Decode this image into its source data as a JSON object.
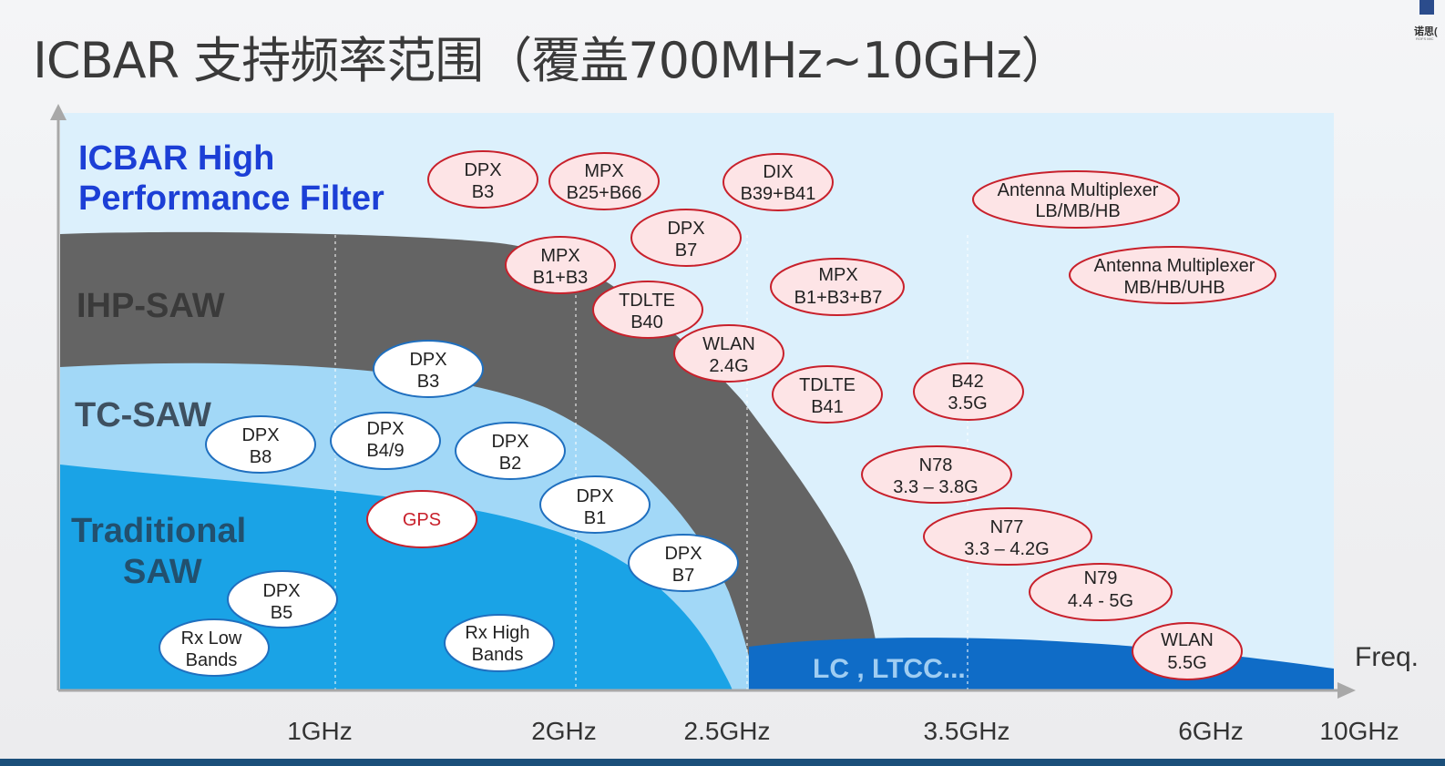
{
  "title": "ICBAR 支持频率范围（覆盖700MHz~10GHz）",
  "logo": {
    "text": "诺思(",
    "sub": "ROFS MIC"
  },
  "colors": {
    "plot_bg": "#dcf0fc",
    "ihp_saw": "#646464",
    "tc_saw": "#a2d8f7",
    "traditional_saw": "#1aa3e6",
    "lc_ltcc": "#0f6cc7",
    "ellipse_red_border": "#c8202b",
    "ellipse_red_fill": "#fde4e6",
    "ellipse_blue_border": "#1f6fbf"
  },
  "regions": {
    "icbar": "ICBAR High",
    "icbar2": "Performance Filter",
    "ihp": "IHP-SAW",
    "tc": "TC-SAW",
    "traditional": "Traditional",
    "traditional2": "SAW",
    "lc": "LC , LTCC..."
  },
  "axis": {
    "x_label": "Freq.",
    "ticks": [
      "1GHz",
      "2GHz",
      "2.5GHz",
      "3.5GHz",
      "6GHz",
      "10GHz"
    ]
  },
  "bubbles": [
    {
      "l1": "DPX",
      "l2": "B3",
      "style": "red"
    },
    {
      "l1": "MPX",
      "l2": "B25+B66",
      "style": "red"
    },
    {
      "l1": "DIX",
      "l2": "B39+B41",
      "style": "red"
    },
    {
      "l1": "Antenna Multiplexer",
      "l2": "LB/MB/HB",
      "style": "red"
    },
    {
      "l1": "DPX",
      "l2": "B7",
      "style": "red"
    },
    {
      "l1": "MPX",
      "l2": "B1+B3",
      "style": "red"
    },
    {
      "l1": "Antenna Multiplexer",
      "l2": "MB/HB/UHB",
      "style": "red"
    },
    {
      "l1": "MPX",
      "l2": "B1+B3+B7",
      "style": "red"
    },
    {
      "l1": "TDLTE",
      "l2": "B40",
      "style": "red"
    },
    {
      "l1": "WLAN",
      "l2": "2.4G",
      "style": "red"
    },
    {
      "l1": "TDLTE",
      "l2": "B41",
      "style": "red"
    },
    {
      "l1": "B42",
      "l2": "3.5G",
      "style": "red"
    },
    {
      "l1": "N78",
      "l2": "3.3 – 3.8G",
      "style": "red"
    },
    {
      "l1": "N77",
      "l2": "3.3 – 4.2G",
      "style": "red"
    },
    {
      "l1": "N79",
      "l2": "4.4 - 5G",
      "style": "red"
    },
    {
      "l1": "WLAN",
      "l2": "5.5G",
      "style": "red"
    },
    {
      "l1": "DPX",
      "l2": "B3",
      "style": "blue"
    },
    {
      "l1": "DPX",
      "l2": "B8",
      "style": "blue"
    },
    {
      "l1": "DPX",
      "l2": "B4/9",
      "style": "blue"
    },
    {
      "l1": "DPX",
      "l2": "B2",
      "style": "blue"
    },
    {
      "l1": "DPX",
      "l2": "B1",
      "style": "blue"
    },
    {
      "l1": "GPS",
      "l2": "",
      "style": "gps"
    },
    {
      "l1": "DPX",
      "l2": "B7",
      "style": "blue"
    },
    {
      "l1": "DPX",
      "l2": "B5",
      "style": "blue"
    },
    {
      "l1": "Rx Low",
      "l2": "Bands",
      "style": "blue"
    },
    {
      "l1": "Rx High",
      "l2": "Bands",
      "style": "blue"
    }
  ]
}
